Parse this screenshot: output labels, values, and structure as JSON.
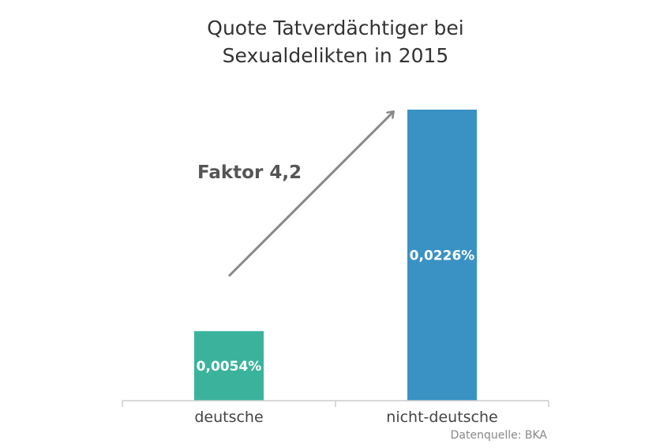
{
  "chart_data": {
    "type": "bar",
    "title_lines": [
      "Quote Tatverdächtiger bei",
      "Sexualdelikten in 2015"
    ],
    "categories": [
      "deutsche",
      "nicht-deutsche"
    ],
    "values": [
      0.0054,
      0.0226
    ],
    "value_labels": [
      "0,0054%",
      "0,0226%"
    ],
    "unit": "%",
    "colors": [
      "#3bb39c",
      "#3a92c4"
    ],
    "annotation": "Faktor 4,2",
    "source": "Datenquelle: BKA",
    "ylim": [
      0,
      0.0226
    ],
    "grid": false,
    "legend": "none"
  }
}
